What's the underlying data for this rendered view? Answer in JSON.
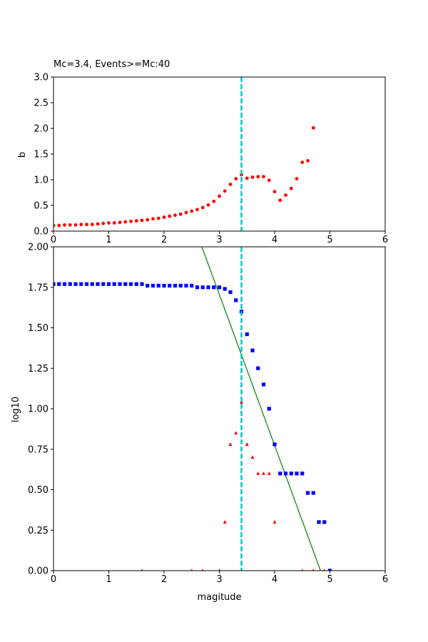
{
  "chart_data": [
    {
      "type": "scatter",
      "title": "Mc=3.4, Events>=Mc:40",
      "xlabel": "",
      "ylabel": "b",
      "xlim": [
        0,
        6
      ],
      "ylim": [
        0,
        3
      ],
      "xticks": [
        "0",
        "1",
        "2",
        "3",
        "4",
        "5",
        "6"
      ],
      "yticks": [
        "0.0",
        "0.5",
        "1.0",
        "1.5",
        "2.0",
        "2.5",
        "3.0"
      ],
      "mc_line": 3.4,
      "colors": {
        "points": "#ff0000",
        "mc": "#00bfbf"
      },
      "series": [
        {
          "points": [
            [
              0.0,
              0.11
            ],
            [
              0.1,
              0.11
            ],
            [
              0.2,
              0.12
            ],
            [
              0.3,
              0.12
            ],
            [
              0.4,
              0.12
            ],
            [
              0.5,
              0.13
            ],
            [
              0.6,
              0.13
            ],
            [
              0.7,
              0.13
            ],
            [
              0.8,
              0.14
            ],
            [
              0.9,
              0.15
            ],
            [
              1.0,
              0.16
            ],
            [
              1.1,
              0.16
            ],
            [
              1.2,
              0.17
            ],
            [
              1.3,
              0.18
            ],
            [
              1.4,
              0.19
            ],
            [
              1.5,
              0.2
            ],
            [
              1.6,
              0.21
            ],
            [
              1.7,
              0.22
            ],
            [
              1.8,
              0.24
            ],
            [
              1.9,
              0.25
            ],
            [
              2.0,
              0.27
            ],
            [
              2.1,
              0.29
            ],
            [
              2.2,
              0.31
            ],
            [
              2.3,
              0.33
            ],
            [
              2.4,
              0.36
            ],
            [
              2.5,
              0.39
            ],
            [
              2.6,
              0.42
            ],
            [
              2.7,
              0.46
            ],
            [
              2.8,
              0.51
            ],
            [
              2.9,
              0.58
            ],
            [
              3.0,
              0.68
            ],
            [
              3.1,
              0.78
            ],
            [
              3.2,
              0.91
            ],
            [
              3.3,
              1.02
            ],
            [
              3.4,
              1.1
            ],
            [
              3.5,
              1.03
            ],
            [
              3.6,
              1.05
            ],
            [
              3.7,
              1.06
            ],
            [
              3.8,
              1.06
            ],
            [
              3.9,
              0.99
            ],
            [
              4.0,
              0.77
            ],
            [
              4.1,
              0.6
            ],
            [
              4.2,
              0.7
            ],
            [
              4.3,
              0.83
            ],
            [
              4.4,
              1.02
            ],
            [
              4.5,
              1.34
            ],
            [
              4.6,
              1.37
            ],
            [
              4.7,
              2.01
            ]
          ]
        }
      ]
    },
    {
      "type": "scatter",
      "title": "",
      "xlabel": "magitude",
      "ylabel": "log10",
      "xlim": [
        0,
        6
      ],
      "ylim": [
        0,
        2
      ],
      "xticks": [
        "0",
        "1",
        "2",
        "3",
        "4",
        "5",
        "6"
      ],
      "yticks": [
        "0.00",
        "0.25",
        "0.50",
        "0.75",
        "1.00",
        "1.25",
        "1.50",
        "1.75",
        "2.00"
      ],
      "mc_line": 3.4,
      "colors": {
        "cumulative": "#0000ff",
        "noncumulative": "#ff0000",
        "fit": "#008000",
        "mc": "#00bfbf"
      },
      "fit_line": [
        [
          2.04,
          2.6
        ],
        [
          4.83,
          0.0
        ]
      ],
      "series": [
        {
          "marker": "square",
          "points": [
            [
              0.0,
              1.77
            ],
            [
              0.1,
              1.77
            ],
            [
              0.2,
              1.77
            ],
            [
              0.3,
              1.77
            ],
            [
              0.4,
              1.77
            ],
            [
              0.5,
              1.77
            ],
            [
              0.6,
              1.77
            ],
            [
              0.7,
              1.77
            ],
            [
              0.8,
              1.77
            ],
            [
              0.9,
              1.77
            ],
            [
              1.0,
              1.77
            ],
            [
              1.1,
              1.77
            ],
            [
              1.2,
              1.77
            ],
            [
              1.3,
              1.77
            ],
            [
              1.4,
              1.77
            ],
            [
              1.5,
              1.77
            ],
            [
              1.6,
              1.77
            ],
            [
              1.7,
              1.76
            ],
            [
              1.8,
              1.76
            ],
            [
              1.9,
              1.76
            ],
            [
              2.0,
              1.76
            ],
            [
              2.1,
              1.76
            ],
            [
              2.2,
              1.76
            ],
            [
              2.3,
              1.76
            ],
            [
              2.4,
              1.76
            ],
            [
              2.5,
              1.76
            ],
            [
              2.6,
              1.75
            ],
            [
              2.7,
              1.75
            ],
            [
              2.8,
              1.75
            ],
            [
              2.9,
              1.75
            ],
            [
              3.0,
              1.75
            ],
            [
              3.1,
              1.74
            ],
            [
              3.2,
              1.72
            ],
            [
              3.3,
              1.67
            ],
            [
              3.4,
              1.6
            ],
            [
              3.5,
              1.46
            ],
            [
              3.6,
              1.36
            ],
            [
              3.7,
              1.25
            ],
            [
              3.8,
              1.15
            ],
            [
              3.9,
              1.0
            ],
            [
              4.0,
              0.78
            ],
            [
              4.1,
              0.6
            ],
            [
              4.2,
              0.6
            ],
            [
              4.3,
              0.6
            ],
            [
              4.4,
              0.6
            ],
            [
              4.5,
              0.6
            ],
            [
              4.6,
              0.48
            ],
            [
              4.7,
              0.48
            ],
            [
              4.8,
              0.3
            ],
            [
              4.9,
              0.3
            ],
            [
              5.0,
              0.0
            ]
          ]
        },
        {
          "marker": "triangle",
          "points": [
            [
              1.6,
              0.0
            ],
            [
              2.5,
              0.0
            ],
            [
              2.7,
              0.0
            ],
            [
              3.0,
              0.0
            ],
            [
              3.1,
              0.3
            ],
            [
              3.2,
              0.78
            ],
            [
              3.3,
              0.85
            ],
            [
              3.4,
              1.04
            ],
            [
              3.5,
              0.78
            ],
            [
              3.6,
              0.7
            ],
            [
              3.7,
              0.6
            ],
            [
              3.8,
              0.6
            ],
            [
              3.9,
              0.6
            ],
            [
              4.0,
              0.3
            ],
            [
              4.5,
              0.0
            ],
            [
              4.7,
              0.0
            ],
            [
              4.9,
              0.0
            ]
          ]
        }
      ]
    }
  ]
}
